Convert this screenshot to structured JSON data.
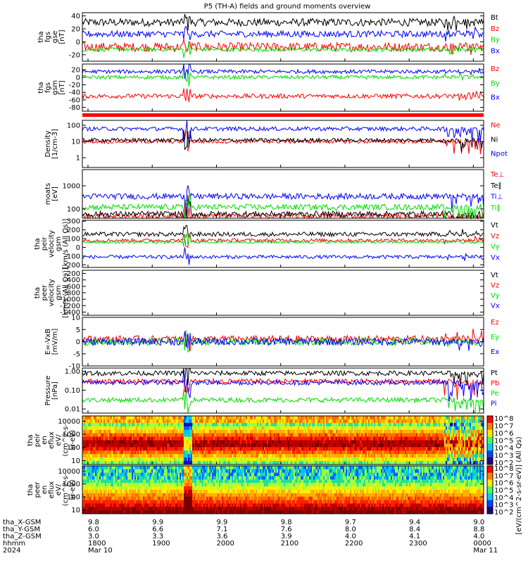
{
  "title": "P5 (TH-A) fields and ground moments overview",
  "colors": {
    "black": "#000000",
    "red": "#ff0000",
    "green": "#00dd00",
    "blue": "#0000ff",
    "yellowgreen": "#aadd00"
  },
  "chart_data": [
    {
      "type": "line",
      "panel": "tha_fgs_gse",
      "ylabel": [
        "tha",
        "fgs",
        "gse",
        "[nT]"
      ],
      "ylim": [
        -30,
        45
      ],
      "yticks": [
        40,
        20,
        0,
        -20
      ],
      "series": [
        {
          "name": "Bt",
          "color": "#000000",
          "level": 30,
          "noise": 6
        },
        {
          "name": "Bz",
          "color": "#ff0000",
          "level": -8,
          "noise": 7
        },
        {
          "name": "By",
          "color": "#00dd00",
          "level": -12,
          "noise": 3
        },
        {
          "name": "Bx",
          "color": "#0000ff",
          "level": 12,
          "noise": 5
        }
      ]
    },
    {
      "type": "line",
      "panel": "tha_fgs_gsm",
      "ylabel": [
        "tha",
        "fgs",
        "gsm",
        "[nT]"
      ],
      "ylim": [
        -90,
        35
      ],
      "yticks": [
        20,
        0,
        -20,
        -40,
        -60,
        -80
      ],
      "series": [
        {
          "name": "Bz",
          "color": "#ff0000",
          "level": -50,
          "noise": 6
        },
        {
          "name": "By",
          "color": "#00dd00",
          "level": 0,
          "noise": 5
        },
        {
          "name": "Bx",
          "color": "#0000ff",
          "level": 15,
          "noise": 5
        }
      ]
    },
    {
      "type": "line",
      "panel": "density",
      "ylabel": [
        "Density",
        "[1/cm-3]"
      ],
      "ylim": [
        0.25,
        200
      ],
      "log": true,
      "ytickvals": [
        100,
        10,
        1
      ],
      "yticks": [
        "100",
        "10",
        "1"
      ],
      "series": [
        {
          "name": "Ne",
          "color": "#ff0000",
          "level": 10,
          "noise": 0.05
        },
        {
          "name": "Ni",
          "color": "#000000",
          "level": 12,
          "noise": 0.05
        },
        {
          "name": "Npot",
          "color": "#0000ff",
          "level": 60,
          "noise": 0.08
        }
      ]
    },
    {
      "type": "line",
      "panel": "temperature",
      "ylabel": [
        "moats",
        "[eV]"
      ],
      "ylim": [
        40,
        5000
      ],
      "log": true,
      "ytickvals": [
        1000,
        100
      ],
      "yticks": [
        "1000",
        "100"
      ],
      "series": [
        {
          "name": "Te⊥",
          "color": "#ff0000",
          "level": 50
        },
        {
          "name": "Te∥",
          "color": "#000000",
          "level": 60
        },
        {
          "name": "Ti⊥",
          "color": "#0000ff",
          "level": 350
        },
        {
          "name": "Ti∥",
          "color": "#00dd00",
          "level": 120
        }
      ]
    },
    {
      "type": "line",
      "panel": "tha_peir_velocity_gsm",
      "ylabel": [
        "tha",
        "peir",
        "velocity",
        "gsm",
        "[km/s (All Qs)]"
      ],
      "ylim": [
        -230,
        310
      ],
      "yticks": [
        300,
        200,
        100,
        0,
        -100,
        -200
      ],
      "series": [
        {
          "name": "Vt",
          "color": "#000000",
          "level": 150,
          "noise": 25
        },
        {
          "name": "Vz",
          "color": "#ff0000",
          "level": 80,
          "noise": 20
        },
        {
          "name": "Vy",
          "color": "#00dd00",
          "level": 60,
          "noise": 15
        },
        {
          "name": "Vx",
          "color": "#0000ff",
          "level": -110,
          "noise": 20
        }
      ]
    },
    {
      "type": "line",
      "panel": "tha_peer_velocity_gsm",
      "ylabel": [
        "tha",
        "peer",
        "velocity",
        "gsm",
        "[km/s (All Qs)]"
      ],
      "ylim": [
        -1500,
        -100
      ],
      "yticks": [
        -200,
        -400,
        -600,
        -800,
        -1000,
        -1200,
        -1400
      ],
      "series": [
        {
          "name": "Vt",
          "color": "#000000"
        },
        {
          "name": "Vz",
          "color": "#ff0000"
        },
        {
          "name": "Vy",
          "color": "#00dd00"
        },
        {
          "name": "Vx",
          "color": "#0000ff"
        }
      ]
    },
    {
      "type": "line",
      "panel": "E_VxB",
      "ylabel": [
        "E=-VxB",
        "[mV/m]"
      ],
      "ylim": [
        -10,
        10
      ],
      "yticks": [
        10,
        5,
        0,
        -5,
        -10
      ],
      "series": [
        {
          "name": "Ez",
          "color": "#ff0000",
          "level": 1,
          "noise": 1.5
        },
        {
          "name": "Ey",
          "color": "#00dd00",
          "level": 0,
          "noise": 1.5
        },
        {
          "name": "Ex",
          "color": "#0000ff",
          "level": 0,
          "noise": 1.5
        }
      ]
    },
    {
      "type": "line",
      "panel": "pressure",
      "ylabel": [
        "Pressure",
        "[nPa]"
      ],
      "ylim": [
        0.006,
        1.5
      ],
      "log": true,
      "ytickvals": [
        1.0,
        0.1,
        0.01
      ],
      "yticks": [
        "1.00",
        "0.10",
        "0.01"
      ],
      "series": [
        {
          "name": "Pt",
          "color": "#000000",
          "level": 0.8
        },
        {
          "name": "Pb",
          "color": "#ff0000",
          "level": 0.3
        },
        {
          "name": "Pe",
          "color": "#00dd00",
          "level": 0.03
        },
        {
          "name": "Pi",
          "color": "#0000ff",
          "level": 0.25
        }
      ]
    },
    {
      "type": "heatmap",
      "panel": "tha_peir_en_eflux",
      "ylabel": [
        "tha",
        "peir",
        "en",
        "eflux",
        "eV/",
        "(cm^2-s-",
        "sr-eV)"
      ],
      "ylim": [
        5,
        25000
      ],
      "log": true,
      "ytickvals": [
        10000,
        1000,
        100,
        10
      ],
      "yticks": [
        "10000",
        "1000",
        "100",
        "10"
      ]
    },
    {
      "type": "heatmap",
      "panel": "tha_peer_en_eflux",
      "ylabel": [
        "tha",
        "peer",
        "en",
        "eflux",
        "eV/",
        "(cm^2-s-",
        "sr-eV)"
      ],
      "ylim": [
        5,
        25000
      ],
      "log": true,
      "ytickvals": [
        10000,
        1000,
        100,
        10
      ],
      "yticks": [
        "10000",
        "1000",
        "100",
        "10"
      ]
    }
  ],
  "colorbars": [
    {
      "ticks": [
        "10^8",
        "10^7",
        "10^6",
        "10^5",
        "10^4",
        "10^3",
        "10^2"
      ],
      "label": "[eV/(cm^2-s-sr-eV)] (All Qs)"
    },
    {
      "ticks": [
        "10^8",
        "10^7",
        "10^6",
        "10^5",
        "10^4",
        "10^3",
        "10^2"
      ],
      "label": "[eV/(cm^2-s-sr-eV)] (All Qs)"
    }
  ],
  "x_axis": {
    "rows": [
      {
        "label": "tha_X-GSM",
        "values": [
          "9.8",
          "9.9",
          "9.9",
          "9.8",
          "9.7",
          "9.4",
          "9.0"
        ]
      },
      {
        "label": "tha_Y-GSM",
        "values": [
          "6.0",
          "6.6",
          "7.1",
          "7.6",
          "8.0",
          "8.4",
          "8.8"
        ]
      },
      {
        "label": "tha_Z-GSM",
        "values": [
          "3.0",
          "3.3",
          "3.6",
          "3.9",
          "4.0",
          "4.1",
          "4.0"
        ]
      },
      {
        "label": "hhmm",
        "values": [
          "1800",
          "1900",
          "2000",
          "2100",
          "2200",
          "2300",
          "0000"
        ]
      },
      {
        "label": "2024",
        "values": [
          "Mar 10",
          "",
          "",
          "",
          "",
          "",
          "Mar 11"
        ]
      }
    ]
  }
}
